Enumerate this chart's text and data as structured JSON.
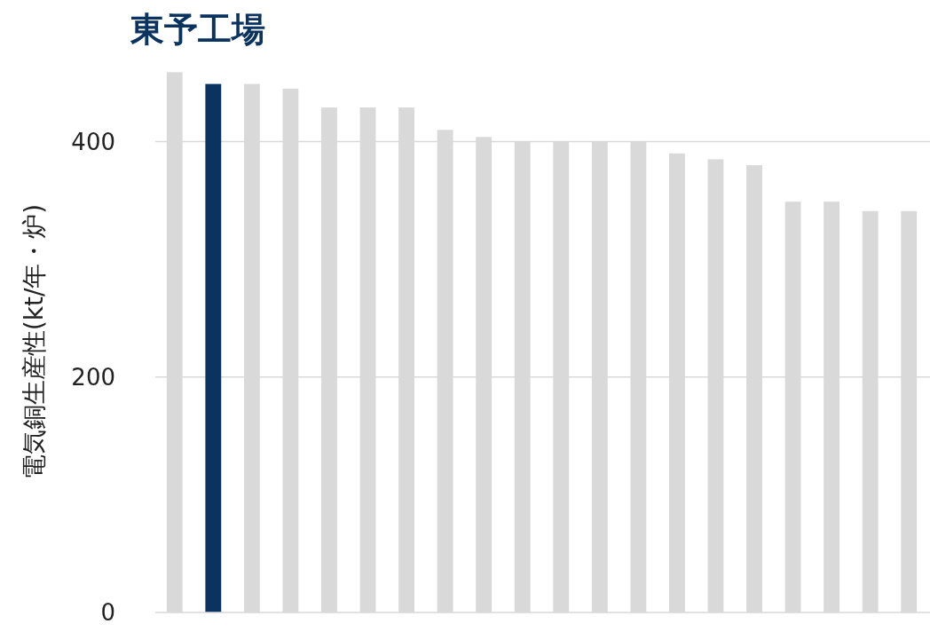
{
  "chart_data": {
    "type": "bar",
    "title": "東予工場",
    "ylabel": "電気銅生産性(kt/年・炉)",
    "categories": [
      null,
      null,
      null,
      null,
      null,
      null,
      null,
      null,
      null,
      null,
      null,
      null,
      null,
      null,
      null,
      null,
      null,
      null,
      null,
      null
    ],
    "values": [
      459,
      449,
      449,
      445,
      429,
      429,
      429,
      410,
      404,
      400,
      400,
      400,
      400,
      390,
      385,
      380,
      349,
      349,
      341,
      341
    ],
    "colors": [
      "#d9d9d9",
      "#0b3360",
      "#d9d9d9",
      "#d9d9d9",
      "#d9d9d9",
      "#d9d9d9",
      "#d9d9d9",
      "#d9d9d9",
      "#d9d9d9",
      "#d9d9d9",
      "#d9d9d9",
      "#d9d9d9",
      "#d9d9d9",
      "#d9d9d9",
      "#d9d9d9",
      "#d9d9d9",
      "#d9d9d9",
      "#d9d9d9",
      "#d9d9d9",
      "#d9d9d9"
    ],
    "ylim": [
      0,
      460
    ],
    "yticks": [
      0,
      200,
      400
    ],
    "grid": "y"
  }
}
